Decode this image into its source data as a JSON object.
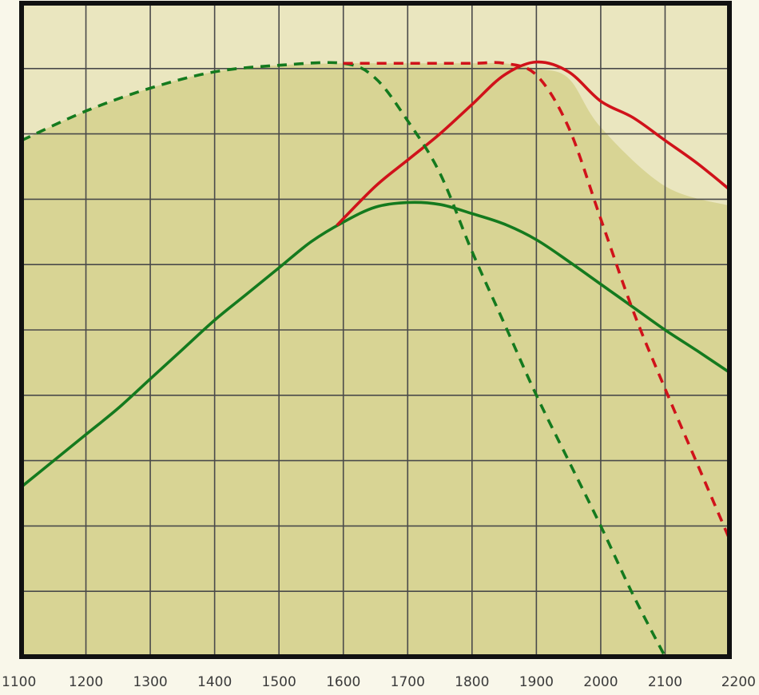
{
  "chart_data": {
    "type": "line",
    "title": "",
    "xlabel": "",
    "ylabel": "",
    "xlim": [
      1100,
      2200
    ],
    "ylim": [
      0,
      10
    ],
    "x_ticks": [
      1100,
      1200,
      1300,
      1400,
      1500,
      1600,
      1700,
      1800,
      1900,
      2000,
      2100,
      2200
    ],
    "y_gridlines": [
      1,
      2,
      3,
      4,
      5,
      6,
      7,
      8,
      9
    ],
    "grid": true,
    "legend": "none",
    "colors": {
      "plot_background": "#d8d494",
      "upper_band": "#eae6bf",
      "page_background": "#f9f7ea",
      "grid": "#4a4a4a",
      "frame": "#111111",
      "green": "#147a1e",
      "red": "#d0121a"
    },
    "envelope": {
      "fill": "#d8d494",
      "x": [
        1100,
        1200,
        1300,
        1400,
        1500,
        1600,
        1700,
        1800,
        1850,
        1900,
        1950,
        2000,
        2100,
        2200
      ],
      "y": [
        7.9,
        8.35,
        8.7,
        8.95,
        9.05,
        9.08,
        9.08,
        9.08,
        9.08,
        9.0,
        8.85,
        8.1,
        7.2,
        6.9
      ]
    },
    "series": [
      {
        "color": "#147a1e",
        "dash": "solid",
        "x": [
          1100,
          1150,
          1200,
          1250,
          1300,
          1350,
          1400,
          1450,
          1500,
          1550,
          1600,
          1650,
          1700,
          1750,
          1800,
          1850,
          1900,
          1950,
          2000,
          2050,
          2100,
          2150,
          2200
        ],
        "y": [
          2.6,
          3.0,
          3.4,
          3.8,
          4.25,
          4.7,
          5.15,
          5.55,
          5.95,
          6.35,
          6.65,
          6.88,
          6.95,
          6.92,
          6.78,
          6.62,
          6.38,
          6.05,
          5.7,
          5.35,
          5.0,
          4.68,
          4.35
        ]
      },
      {
        "color": "#d0121a",
        "dash": "solid",
        "x": [
          1590,
          1650,
          1700,
          1750,
          1800,
          1850,
          1900,
          1950,
          2000,
          2050,
          2100,
          2150,
          2200
        ],
        "y": [
          6.6,
          7.2,
          7.6,
          8.0,
          8.45,
          8.9,
          9.1,
          8.95,
          8.5,
          8.25,
          7.9,
          7.55,
          7.15
        ]
      },
      {
        "color": "#147a1e",
        "dash": "dashed",
        "x": [
          1100,
          1200,
          1300,
          1400,
          1500,
          1600,
          1650,
          1700,
          1750,
          1800,
          1850,
          1900,
          1950,
          2000,
          2050,
          2100
        ],
        "y": [
          7.9,
          8.35,
          8.7,
          8.95,
          9.05,
          9.08,
          8.85,
          8.2,
          7.4,
          6.2,
          5.1,
          4.0,
          3.0,
          2.0,
          0.95,
          0.0
        ]
      },
      {
        "color": "#d0121a",
        "dash": "dashed",
        "x": [
          1600,
          1700,
          1800,
          1850,
          1900,
          1950,
          2000,
          2050,
          2100,
          2150,
          2200
        ],
        "y": [
          9.08,
          9.08,
          9.08,
          9.08,
          8.9,
          8.1,
          6.7,
          5.3,
          4.1,
          2.95,
          1.8
        ]
      }
    ]
  }
}
